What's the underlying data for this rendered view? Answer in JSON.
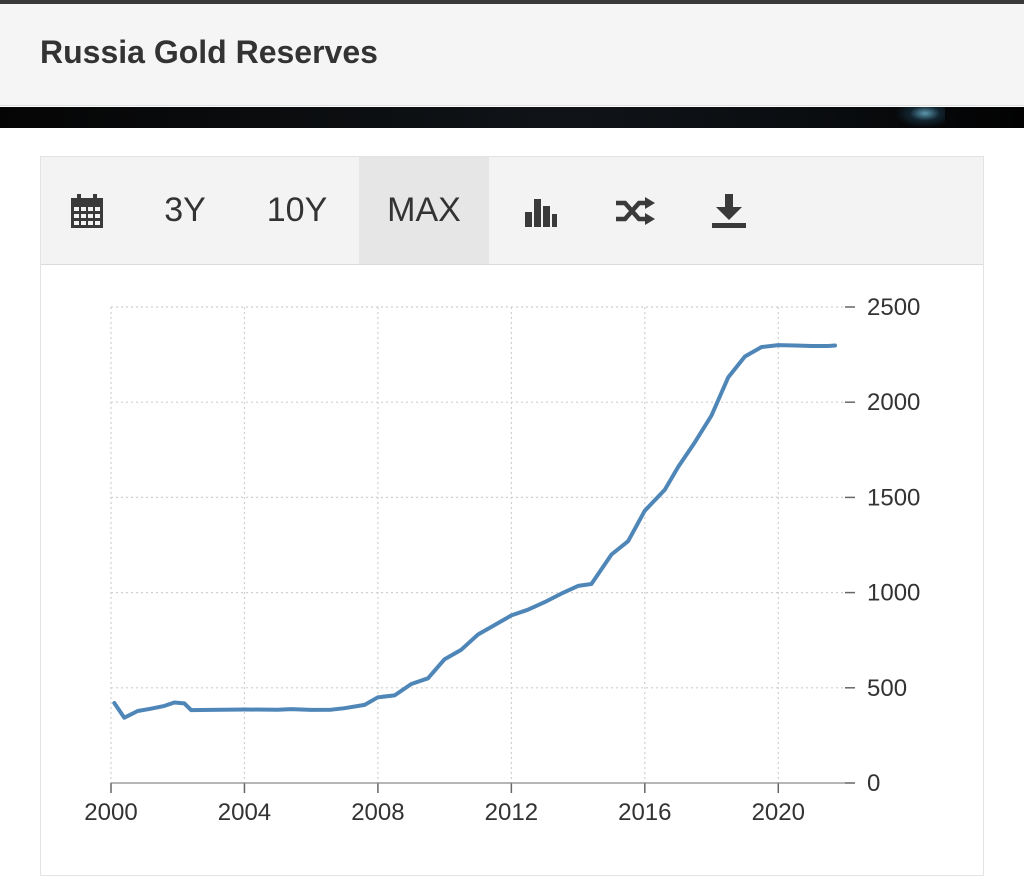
{
  "page": {
    "title": "Russia Gold Reserves"
  },
  "toolbar": {
    "items": [
      {
        "type": "icon",
        "icon": "calendar-icon"
      },
      {
        "type": "label",
        "label": "3Y"
      },
      {
        "type": "label",
        "label": "10Y"
      },
      {
        "type": "label",
        "label": "MAX",
        "active": true
      },
      {
        "type": "icon",
        "icon": "bar-chart-icon"
      },
      {
        "type": "icon",
        "icon": "shuffle-icon"
      },
      {
        "type": "icon",
        "icon": "download-icon"
      }
    ]
  },
  "chart_data": {
    "type": "line",
    "title": "",
    "xlabel": "",
    "ylabel": "",
    "xlim": [
      2000,
      2022
    ],
    "ylim": [
      0,
      2500
    ],
    "x_ticks": [
      2000,
      2004,
      2008,
      2012,
      2016,
      2020
    ],
    "y_ticks": [
      0,
      500,
      1000,
      1500,
      2000,
      2500
    ],
    "y_axis_position": "right",
    "grid": true,
    "line_color": "#4f86b8",
    "series": [
      {
        "name": "",
        "x": [
          2000.1,
          2000.4,
          2000.8,
          2001.2,
          2001.6,
          2001.9,
          2002.2,
          2002.4,
          2003.0,
          2004.0,
          2005.0,
          2005.4,
          2006.0,
          2006.6,
          2007.0,
          2007.6,
          2008.0,
          2008.5,
          2009.0,
          2009.5,
          2010.0,
          2010.5,
          2011.0,
          2011.5,
          2012.0,
          2012.5,
          2013.0,
          2013.5,
          2014.0,
          2014.4,
          2015.0,
          2015.5,
          2016.0,
          2016.6,
          2017.0,
          2017.5,
          2018.0,
          2018.5,
          2019.0,
          2019.5,
          2020.0,
          2020.5,
          2021.0,
          2021.5,
          2021.7
        ],
        "y": [
          420,
          343,
          378,
          390,
          405,
          423,
          418,
          383,
          384,
          386,
          385,
          388,
          384,
          385,
          393,
          410,
          450,
          460,
          520,
          550,
          650,
          700,
          780,
          830,
          880,
          910,
          950,
          995,
          1035,
          1045,
          1200,
          1270,
          1430,
          1540,
          1660,
          1790,
          1930,
          2130,
          2240,
          2290,
          2300,
          2298,
          2295,
          2295,
          2298
        ]
      }
    ]
  }
}
